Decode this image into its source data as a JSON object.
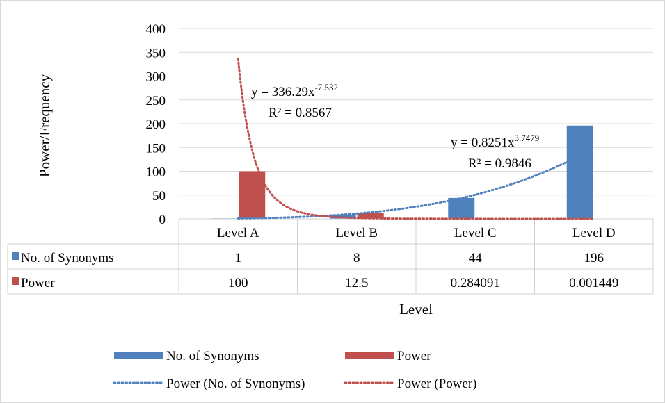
{
  "chart_data": {
    "type": "bar",
    "title": "",
    "xlabel": "Level",
    "ylabel": "Power/Frequency",
    "ylim": [
      0,
      400
    ],
    "yticks": [
      0,
      50,
      100,
      150,
      200,
      250,
      300,
      350,
      400
    ],
    "categories": [
      "Level A",
      "Level B",
      "Level C",
      "Level D"
    ],
    "grid": "horizontal major gridlines",
    "legend_position": "bottom",
    "series": [
      {
        "name": "No. of Synonyms",
        "color": "#4f81bd",
        "values": [
          1,
          8,
          44,
          196
        ],
        "table_values": [
          "1",
          "8",
          "44",
          "196"
        ]
      },
      {
        "name": "Power",
        "color": "#c0504d",
        "values": [
          100,
          12.5,
          0.284091,
          0.001449
        ],
        "table_values": [
          "100",
          "12.5",
          "0.284091",
          "0.001449"
        ]
      }
    ],
    "trendlines": [
      {
        "name": "Power (No. of Synonyms)",
        "series": "No. of Synonyms",
        "model": "power",
        "coefficient": 0.8251,
        "exponent": 3.7479,
        "equation_base": "y = 0.8251x",
        "equation_exponent": "3.7479",
        "r_squared_label": "R² = 0.9846",
        "color": "#4f81bd"
      },
      {
        "name": "Power (Power)",
        "series": "Power",
        "model": "power",
        "coefficient": 336.29,
        "exponent": -7.532,
        "equation_base": "y = 336.29x",
        "equation_exponent": "-7.532",
        "r_squared_label": "R² = 0.8567",
        "color": "#c0504d"
      }
    ]
  }
}
